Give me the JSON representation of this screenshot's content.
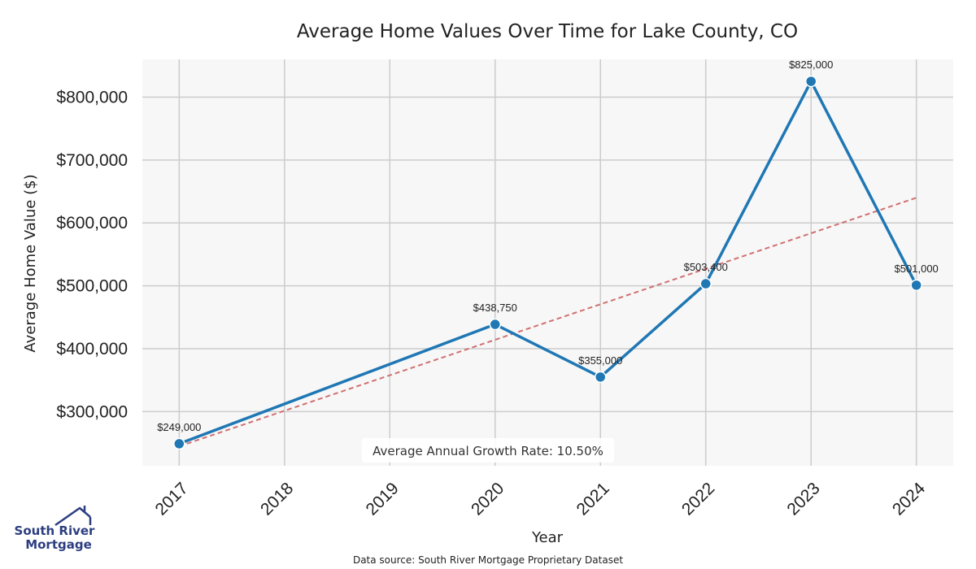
{
  "chart_data": {
    "type": "line",
    "title": "Average Home Values Over Time for Lake County, CO",
    "xlabel": "Year",
    "ylabel": "Average Home Value ($)",
    "categories": [
      "2017",
      "2018",
      "2019",
      "2020",
      "2021",
      "2022",
      "2023",
      "2024"
    ],
    "x": [
      2017,
      2020,
      2021,
      2022,
      2023,
      2024
    ],
    "values": [
      249000,
      438750,
      355000,
      503400,
      825000,
      501000
    ],
    "data_labels": [
      "$249,000",
      "$438,750",
      "$355,000",
      "$503,400",
      "$825,000",
      "$501,000"
    ],
    "yticks": [
      300000,
      400000,
      500000,
      600000,
      700000,
      800000
    ],
    "ytick_labels": [
      "$300,000",
      "$400,000",
      "$500,000",
      "$600,000",
      "$700,000",
      "$800,000"
    ],
    "ylim": [
      214000,
      860000
    ],
    "xlim": [
      2016.65,
      2024.35
    ],
    "trend": {
      "start": [
        2017,
        245000
      ],
      "end": [
        2024,
        640000
      ]
    },
    "grid": true,
    "growth_note": "Average Annual Growth Rate: 10.50%",
    "source": "Data source: South River Mortgage Proprietary Dataset",
    "colors": {
      "line": "#1f77b4",
      "trend": "#d07070",
      "panel": "#f7f7f7",
      "grid": "#cccccc"
    }
  },
  "logo": {
    "line1": "South River",
    "line2": "Mortgage",
    "icon": "house-icon"
  }
}
